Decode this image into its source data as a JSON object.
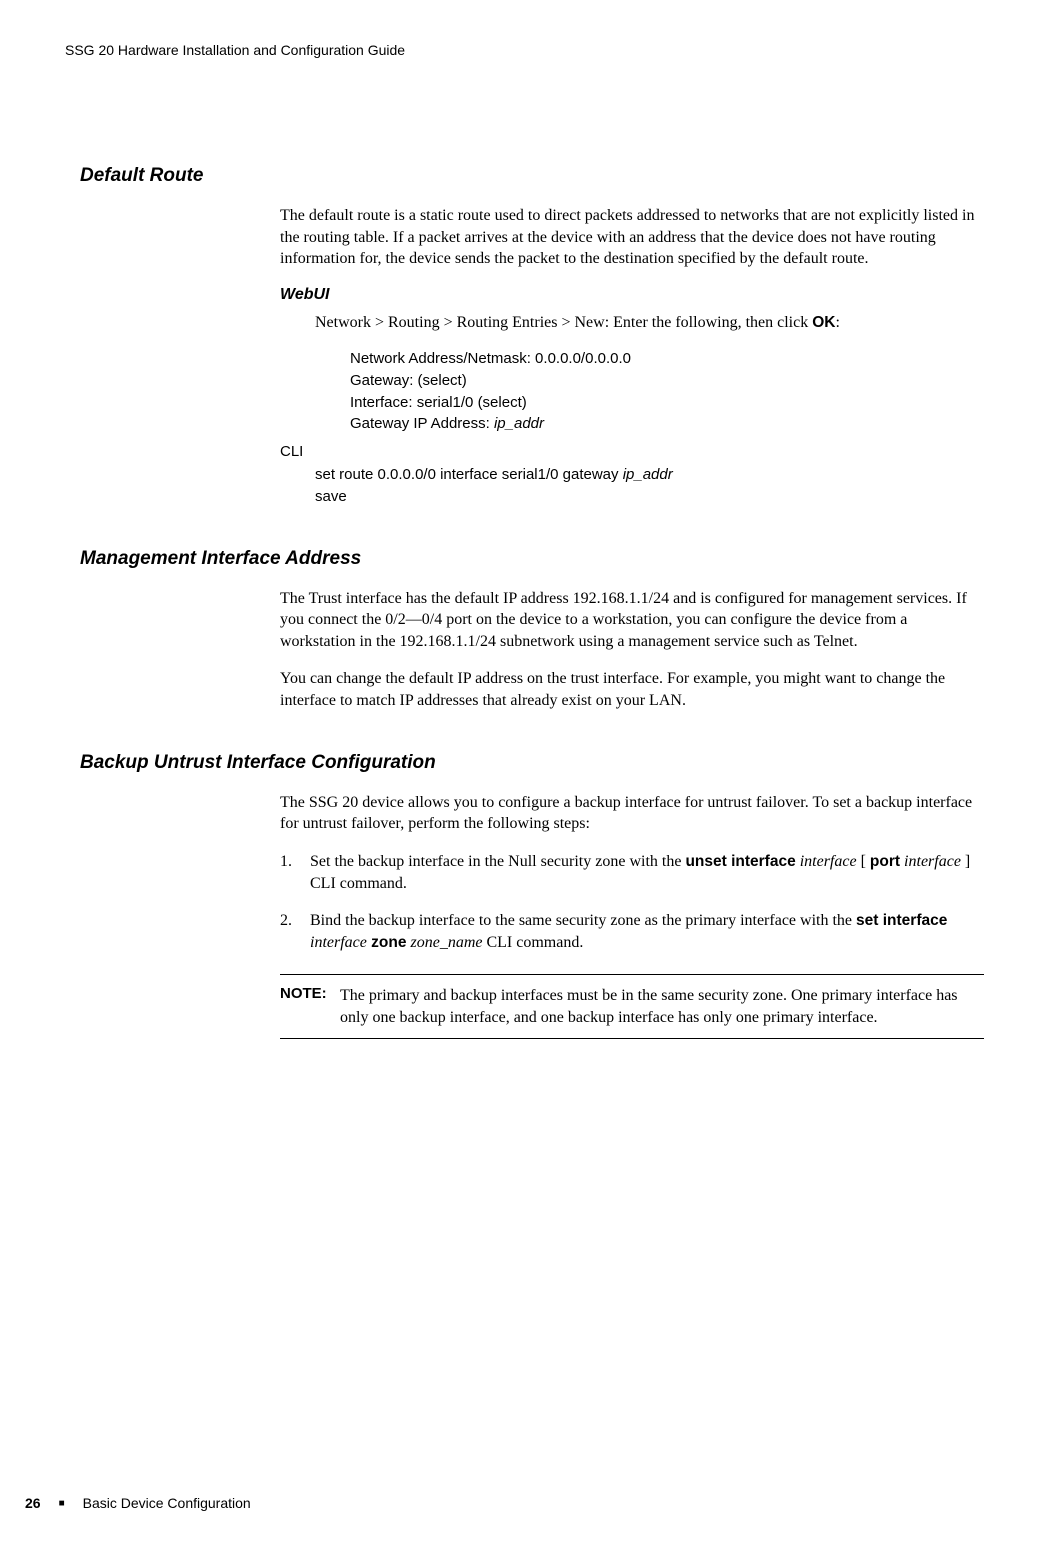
{
  "running_header": "SSG 20 Hardware Installation and Configuration Guide",
  "sections": {
    "default_route": {
      "heading": "Default Route",
      "para1": "The default route is a static route used to direct packets addressed to networks that are not explicitly listed in the routing table. If a packet arrives at the device with an address that the device does not have routing information for, the device sends the packet to the destination specified by the default route.",
      "webui_label": "WebUI",
      "webui_nav_pre": "Network > Routing > Routing Entries > New: Enter the following, then click ",
      "webui_nav_ok": "OK",
      "webui_nav_post": ":",
      "fields": {
        "l1": "Network Address/Netmask: 0.0.0.0/0.0.0.0",
        "l2": "Gateway: (select)",
        "l3": "Interface: serial1/0 (select)",
        "l4_pre": "Gateway IP Address: ",
        "l4_var": "ip_addr"
      },
      "cli_label": "CLI",
      "cli_l1_pre": "set route 0.0.0.0/0 interface serial1/0 gateway ",
      "cli_l1_var": "ip_addr",
      "cli_l2": "save"
    },
    "mgmt": {
      "heading": "Management Interface Address",
      "para1": "The Trust interface has the default IP address 192.168.1.1/24 and is configured for management services. If you connect the 0/2—0/4 port on the device to a workstation, you can configure the device from a workstation in the 192.168.1.1/24 subnetwork using a management service such as Telnet.",
      "para2": "You can change the default IP address on the trust interface. For example, you might want to change the interface to match IP addresses that already exist on your LAN."
    },
    "backup": {
      "heading": "Backup Untrust Interface Configuration",
      "para1": "The SSG 20 device allows you to configure a backup interface for untrust failover. To set a backup interface for untrust failover, perform the following steps:",
      "step1_num": "1.",
      "step1_a": "Set the backup interface in the Null security zone with the ",
      "step1_b": "unset interface",
      "step1_c": " interface",
      "step1_d": " [ ",
      "step1_e": "port",
      "step1_f": " interface",
      "step1_g": " ] CLI command.",
      "step2_num": "2.",
      "step2_a": "Bind the backup interface to the same security zone as the primary interface with the ",
      "step2_b": "set interface",
      "step2_c": " interface",
      "step2_d": " zone",
      "step2_e": " zone_name",
      "step2_f": " CLI command.",
      "note_label": "NOTE:",
      "note_body": "The primary and backup interfaces must be in the same security zone. One primary interface has only one backup interface, and one backup interface has only one primary interface."
    }
  },
  "footer": {
    "page_num": "26",
    "bullet": "■",
    "chapter": "Basic Device Configuration"
  }
}
